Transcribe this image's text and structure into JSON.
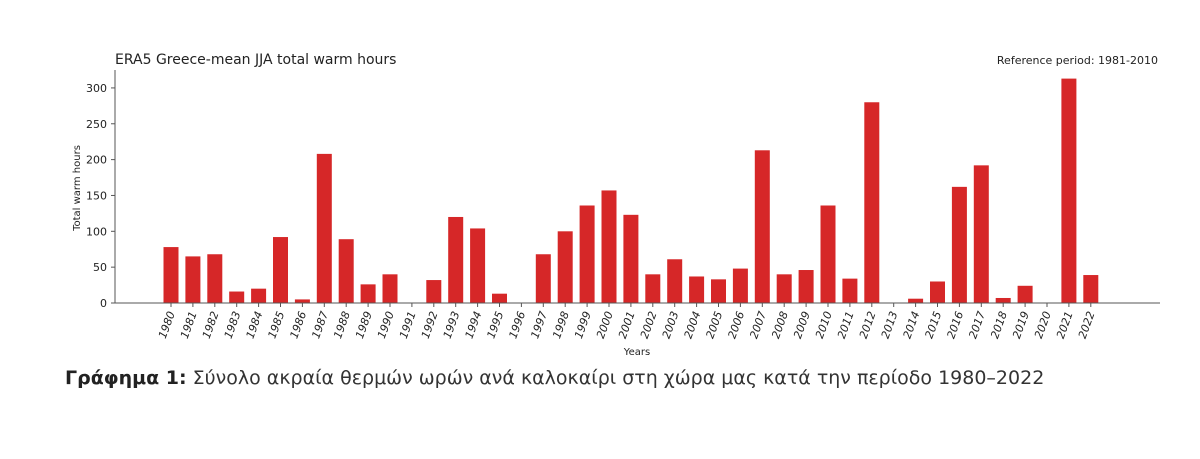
{
  "chart_data": {
    "type": "bar",
    "title": "ERA5 Greece-mean JJA total warm hours",
    "annotation": "Reference period: 1981-2010",
    "xlabel": "Years",
    "ylabel": "Total warm hours",
    "ylim": [
      0,
      325
    ],
    "yticks": [
      0,
      50,
      100,
      150,
      200,
      250,
      300
    ],
    "grid": false,
    "bar_color": "#d62728",
    "categories": [
      "1980",
      "1981",
      "1982",
      "1983",
      "1984",
      "1985",
      "1986",
      "1987",
      "1988",
      "1989",
      "1990",
      "1991",
      "1992",
      "1993",
      "1994",
      "1995",
      "1996",
      "1997",
      "1998",
      "1999",
      "2000",
      "2001",
      "2002",
      "2003",
      "2004",
      "2005",
      "2006",
      "2007",
      "2008",
      "2009",
      "2010",
      "2011",
      "2012",
      "2013",
      "2014",
      "2015",
      "2016",
      "2017",
      "2018",
      "2019",
      "2020",
      "2021",
      "2022"
    ],
    "values": [
      78,
      65,
      68,
      16,
      20,
      92,
      5,
      208,
      89,
      26,
      40,
      0,
      32,
      120,
      104,
      13,
      0,
      68,
      100,
      136,
      157,
      123,
      40,
      61,
      37,
      33,
      48,
      213,
      40,
      46,
      136,
      34,
      280,
      0,
      6,
      30,
      162,
      192,
      7,
      24,
      0,
      313,
      39
    ]
  },
  "caption": {
    "lead": "Γράφημα 1:",
    "text": " Σύνολο ακραία θερμών ωρών ανά καλοκαίρι στη χώρα μας κατά την περίοδο 1980–2022"
  }
}
